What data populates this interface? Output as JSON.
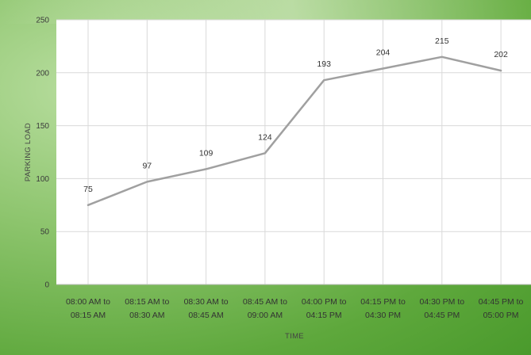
{
  "chart_data": {
    "type": "line",
    "title": "",
    "xlabel": "TIME",
    "ylabel": "PARKING LOAD",
    "ylim": [
      0,
      250
    ],
    "yticks": [
      0,
      50,
      100,
      150,
      200,
      250
    ],
    "grid": true,
    "legend": "none",
    "categories": [
      [
        "08:00  AM to",
        "08:15  AM"
      ],
      [
        "08:15  AM to",
        "08:30  AM"
      ],
      [
        "08:30  AM to",
        "08:45  AM"
      ],
      [
        "08:45  AM to",
        "09:00  AM"
      ],
      [
        "04:00  PM to",
        "04:15  PM"
      ],
      [
        "04:15  PM to",
        "04:30  PM"
      ],
      [
        "04:30  PM to",
        "04:45  PM"
      ],
      [
        "04:45  PM to",
        "05:00  PM"
      ]
    ],
    "series": [
      {
        "values": [
          75,
          97,
          109,
          124,
          193,
          204,
          215,
          202
        ],
        "color": "#a0a0a0"
      }
    ],
    "colors": {
      "plot_background": "#ffffff",
      "gridline": "#d9d9d9",
      "line": "#a0a0a0"
    }
  }
}
